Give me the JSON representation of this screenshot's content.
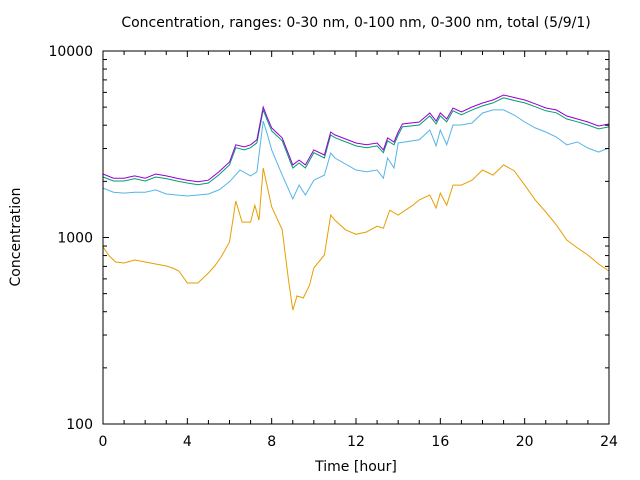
{
  "chart_data": {
    "type": "line",
    "title": "Concentration, ranges: 0-30 nm, 0-100 nm, 0-300 nm, total (5/9/1)",
    "xlabel": "Time [hour]",
    "ylabel": "Concentration",
    "xlim": [
      0,
      24
    ],
    "ylim": [
      100,
      10000
    ],
    "yscale": "log",
    "grid": false,
    "legend": "none",
    "x_ticks": [
      0,
      4,
      8,
      12,
      16,
      20,
      24
    ],
    "x_tick_labels": [
      "0",
      "4",
      "8",
      "12",
      "16",
      "20",
      "24"
    ],
    "y_ticks": [
      100,
      1000,
      10000
    ],
    "y_tick_labels": [
      "100",
      "1000",
      "10000"
    ],
    "series": [
      {
        "name": "total",
        "color": "#9400d3",
        "x": [
          0,
          0.5,
          1,
          1.5,
          2,
          2.5,
          3,
          3.5,
          4,
          4.5,
          5,
          5.5,
          6,
          6.3,
          6.7,
          7,
          7.3,
          7.6,
          7.8,
          8,
          8.5,
          9,
          9.3,
          9.6,
          10,
          10.5,
          10.8,
          11,
          12,
          12.5,
          13,
          13.3,
          13.5,
          13.8,
          14,
          14.2,
          15,
          15.5,
          15.8,
          16,
          16.3,
          16.6,
          17,
          17.5,
          18,
          18.5,
          19,
          19.5,
          20,
          20.5,
          21,
          21.5,
          22,
          22.5,
          23,
          23.5,
          24
        ],
        "values": [
          2190,
          2080,
          2080,
          2140,
          2080,
          2190,
          2140,
          2080,
          2030,
          1990,
          2030,
          2250,
          2540,
          3140,
          3060,
          3140,
          3340,
          5010,
          4370,
          3870,
          3420,
          2450,
          2600,
          2450,
          2950,
          2770,
          3680,
          3550,
          3210,
          3140,
          3210,
          2950,
          3420,
          3250,
          3680,
          4060,
          4160,
          4650,
          4210,
          4650,
          4320,
          4950,
          4710,
          5010,
          5260,
          5460,
          5810,
          5630,
          5460,
          5210,
          4950,
          4830,
          4480,
          4320,
          4160,
          3960,
          4060
        ]
      },
      {
        "name": "0-300 nm",
        "color": "#009e73",
        "x": [
          0,
          0.5,
          1,
          1.5,
          2,
          2.5,
          3,
          3.5,
          4,
          4.5,
          5,
          5.5,
          6,
          6.3,
          6.7,
          7,
          7.3,
          7.6,
          7.8,
          8,
          8.5,
          9,
          9.3,
          9.6,
          10,
          10.5,
          10.8,
          11,
          12,
          12.5,
          13,
          13.3,
          13.5,
          13.8,
          14,
          14.2,
          15,
          15.5,
          15.8,
          16,
          16.3,
          16.6,
          17,
          17.5,
          18,
          18.5,
          19,
          19.5,
          20,
          20.5,
          21,
          21.5,
          22,
          22.5,
          23,
          23.5,
          24
        ],
        "values": [
          2110,
          2010,
          2010,
          2070,
          2010,
          2110,
          2070,
          2010,
          1960,
          1920,
          1960,
          2170,
          2450,
          3030,
          2950,
          3030,
          3220,
          4830,
          4220,
          3730,
          3300,
          2360,
          2510,
          2360,
          2850,
          2670,
          3550,
          3430,
          3100,
          3030,
          3100,
          2850,
          3300,
          3140,
          3550,
          3920,
          4010,
          4490,
          4060,
          4490,
          4170,
          4780,
          4550,
          4830,
          5080,
          5270,
          5610,
          5430,
          5270,
          5030,
          4780,
          4660,
          4320,
          4170,
          4010,
          3820,
          3920
        ]
      },
      {
        "name": "0-100 nm",
        "color": "#56b4e9",
        "x": [
          0,
          0.5,
          1,
          1.5,
          2,
          2.5,
          3,
          3.5,
          4,
          4.5,
          5,
          5.5,
          6,
          6.5,
          7,
          7.3,
          7.6,
          7.8,
          8,
          8.5,
          9,
          9.3,
          9.6,
          10,
          10.5,
          10.8,
          11,
          12,
          12.5,
          13,
          13.3,
          13.5,
          13.8,
          14,
          15,
          15.5,
          15.8,
          16,
          16.3,
          16.6,
          17,
          17.5,
          18,
          18.5,
          19,
          19.5,
          20,
          20.5,
          21,
          21.5,
          22,
          22.5,
          23,
          23.5,
          24
        ],
        "values": [
          1840,
          1750,
          1730,
          1750,
          1750,
          1800,
          1710,
          1690,
          1670,
          1690,
          1710,
          1800,
          1990,
          2300,
          2140,
          2250,
          4210,
          3550,
          2950,
          2160,
          1610,
          1910,
          1690,
          2030,
          2160,
          2840,
          2670,
          2300,
          2250,
          2300,
          2080,
          2670,
          2360,
          3210,
          3340,
          3770,
          3100,
          3770,
          3140,
          4010,
          4010,
          4110,
          4650,
          4830,
          4830,
          4540,
          4160,
          3870,
          3680,
          3460,
          3140,
          3250,
          3020,
          2870,
          3020
        ]
      },
      {
        "name": "0-30 nm",
        "color": "#e69f00",
        "x": [
          0,
          0.3,
          0.6,
          1,
          1.5,
          2,
          2.5,
          3,
          3.3,
          3.6,
          4,
          4.5,
          5,
          5.3,
          5.6,
          6,
          6.3,
          6.6,
          7,
          7.2,
          7.4,
          7.6,
          8,
          8.5,
          8.8,
          9,
          9.2,
          9.5,
          9.8,
          10,
          10.5,
          10.8,
          11,
          11.5,
          12,
          12.5,
          13,
          13.3,
          13.6,
          14,
          14.3,
          14.7,
          15,
          15.5,
          15.8,
          16,
          16.3,
          16.6,
          17,
          17.5,
          18,
          18.5,
          19,
          19.5,
          20,
          20.5,
          21,
          21.5,
          22,
          22.5,
          23,
          23.5,
          24
        ],
        "values": [
          890,
          796,
          739,
          730,
          757,
          739,
          721,
          703,
          686,
          661,
          570,
          570,
          645,
          703,
          786,
          946,
          1570,
          1210,
          1210,
          1490,
          1240,
          2360,
          1460,
          1100,
          592,
          408,
          486,
          474,
          556,
          686,
          806,
          1320,
          1240,
          1100,
          1040,
          1070,
          1150,
          1120,
          1400,
          1320,
          1390,
          1490,
          1590,
          1690,
          1440,
          1730,
          1490,
          1910,
          1910,
          2030,
          2300,
          2160,
          2450,
          2280,
          1910,
          1590,
          1370,
          1170,
          970,
          880,
          806,
          721,
          661
        ]
      }
    ]
  }
}
